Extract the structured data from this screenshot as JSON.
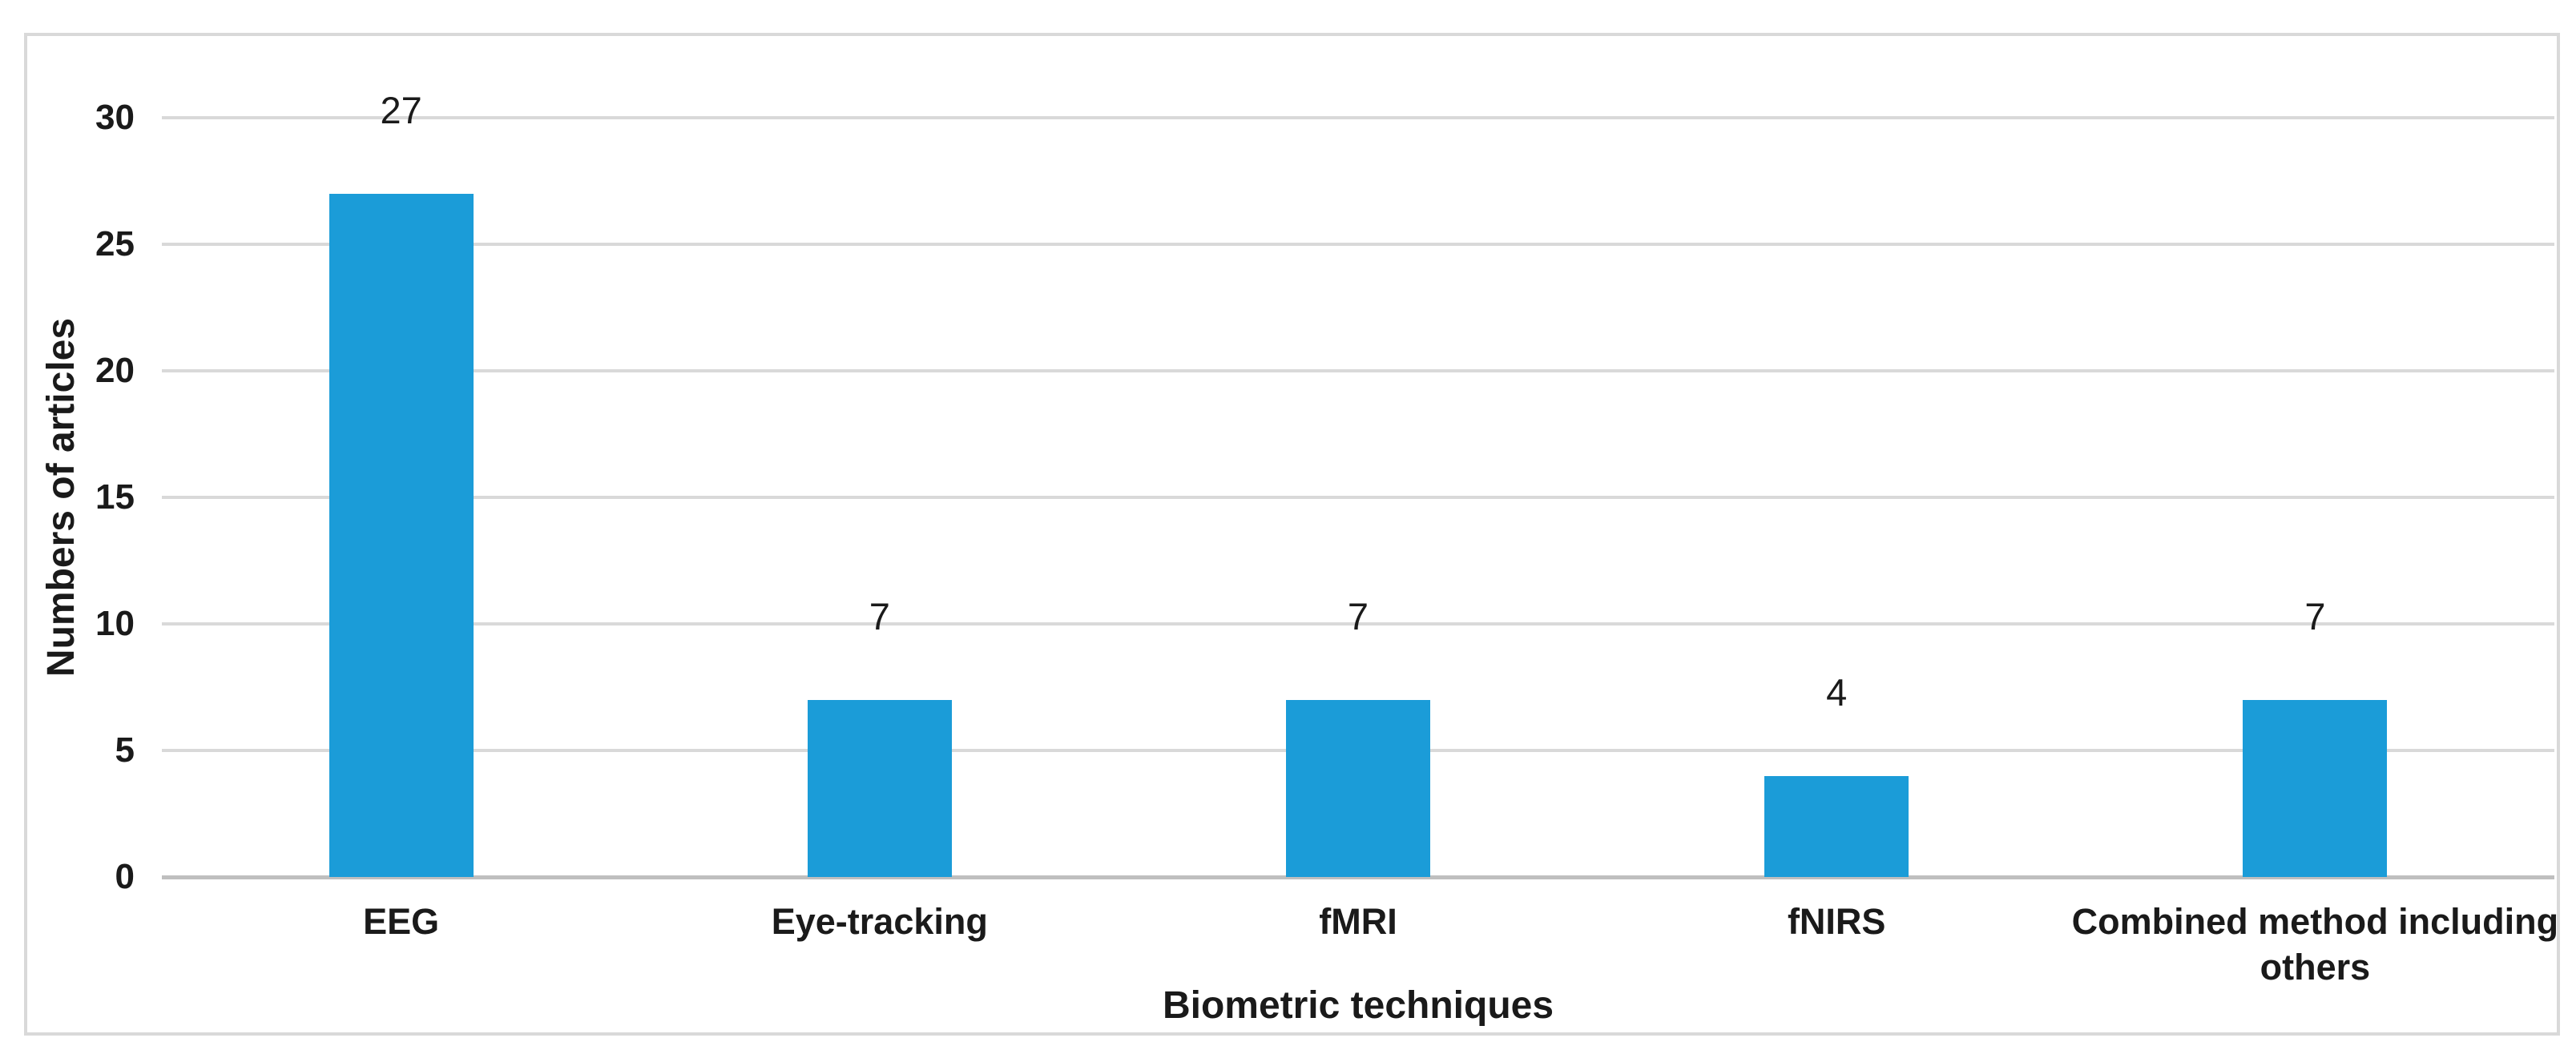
{
  "chart_data": {
    "type": "bar",
    "title": "",
    "categories": [
      "EEG",
      "Eye-tracking",
      "fMRI",
      "fNIRS",
      "Combined method including\nothers"
    ],
    "values": [
      27,
      7,
      7,
      4,
      7
    ],
    "data_labels": [
      "27",
      "7",
      "7",
      "4",
      "7"
    ],
    "xlabel": "Biometric techniques",
    "ylabel": "Numbers of articles",
    "ylim": [
      0,
      30
    ],
    "yticks": [
      0,
      5,
      10,
      15,
      20,
      25,
      30
    ],
    "grid": true,
    "legend_position": "none",
    "colors": {
      "bar": "#1B9CD8",
      "gridline": "#D9D9D9",
      "axis_line": "#BFBFBF",
      "frame_border": "#D9D9D9",
      "text": "#1A1A1A",
      "background": "#FFFFFF"
    }
  }
}
